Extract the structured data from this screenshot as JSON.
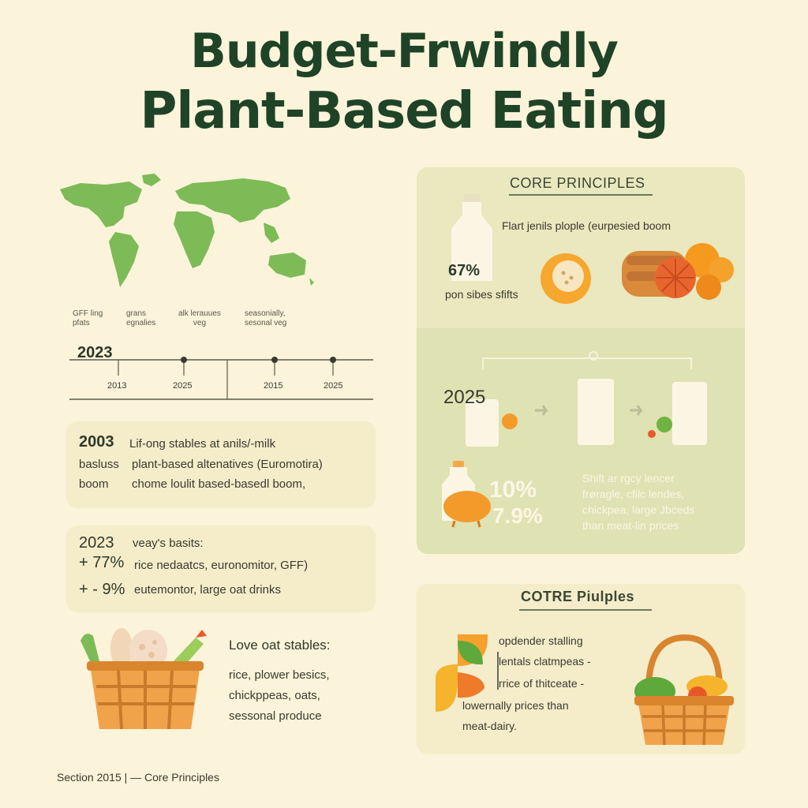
{
  "title": {
    "line1": "Budget-Frwindly",
    "line2": "Plant-Based Eating"
  },
  "map_labels": [
    {
      "line1": "GFF ling",
      "line2": "pfats"
    },
    {
      "line1": "grans",
      "line2": "egnalies"
    },
    {
      "line1": "alk lerauues",
      "line2": "veg"
    },
    {
      "line1": "seasonially,",
      "line2": "sesonal veg"
    }
  ],
  "timeline": {
    "heading_year": "2023",
    "ticks": [
      "2013",
      "2025",
      "2015",
      "2025"
    ]
  },
  "history_panel": {
    "rows": [
      {
        "label": "2003",
        "text": "Lif-ong stables at anils/-milk"
      },
      {
        "label": "basluss",
        "text": "plant-based altenatives (Euromotira)"
      },
      {
        "label": "boom",
        "text": "chome loulit based-basedl boom,"
      }
    ]
  },
  "stats_panel": {
    "year": "2023",
    "year_text": "veay's basits:",
    "rows": [
      {
        "value": "+ 77%",
        "text": "rice nedaatcs, euronomitor, GFF)"
      },
      {
        "value": "+ - 9%",
        "text": "eutemontor, large oat drinks"
      }
    ]
  },
  "basket_text": {
    "heading": "Love oat stables:",
    "lines": [
      "rice, plower besics,",
      "chickppeas, oats,",
      "sessonal produce"
    ]
  },
  "core_panel": {
    "heading": "CORE PRINCIPLES",
    "top_text": "Flart jenils plople (eurpesied boom",
    "percent": "67%",
    "sub_text": "pon sibes sfifts",
    "year": "2025",
    "stat1": "10%",
    "stat2": "7.9%",
    "shift_lines": [
      "Shift ar rgcy lencer",
      "frøragle, cfilc lendes,",
      "chickpea, large Jbceds",
      "than meat-lin prices"
    ]
  },
  "core_panel2": {
    "heading": "COTRE Piulples",
    "lines": [
      "opdender stalling",
      "lentals clatmpeas -",
      "rrice of thitceate -",
      "lowernally prices than",
      "meat-dairy."
    ]
  },
  "footer": {
    "text": "Section 2015 |  — Core Principles"
  },
  "colors": {
    "background": "#fbf3da",
    "title_green": "#1f4326",
    "map_green": "#7dbb57",
    "panel": "#f5ecca",
    "right_panel": "#e9e8be",
    "orange": "#f39a2a"
  }
}
